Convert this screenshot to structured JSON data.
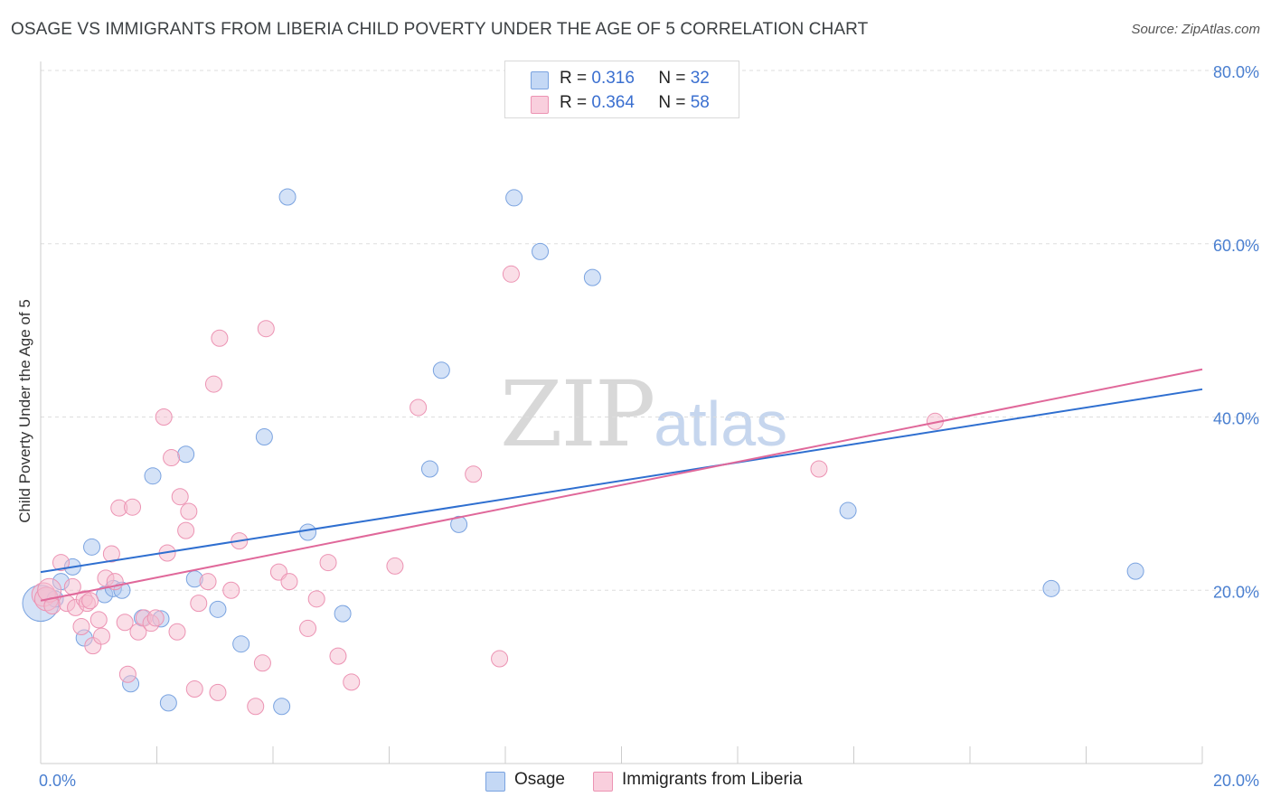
{
  "header": {
    "title": "OSAGE VS IMMIGRANTS FROM LIBERIA CHILD POVERTY UNDER THE AGE OF 5 CORRELATION CHART",
    "source": "Source: ZipAtlas.com"
  },
  "watermark": {
    "zip": "ZIP",
    "atlas": "atlas"
  },
  "legend": {
    "rows": [
      {
        "r_label": "R =",
        "r_value": "0.316",
        "n_label": "N =",
        "n_value": "32"
      },
      {
        "r_label": "R =",
        "r_value": "0.364",
        "n_label": "N =",
        "n_value": "58"
      }
    ]
  },
  "bottom_legend": {
    "series_a": "Osage",
    "series_b": "Immigrants from Liberia"
  },
  "colors": {
    "osage_fill": "#aac6f0",
    "osage_stroke": "#7aa3e0",
    "osage_line": "#2f6fd0",
    "liberia_fill": "#f6bdd0",
    "liberia_stroke": "#ec93b3",
    "liberia_line": "#e0689a",
    "tick_text": "#4a7fd0",
    "grid": "#dddddd"
  },
  "chart_data": {
    "type": "scatter",
    "title": "OSAGE VS IMMIGRANTS FROM LIBERIA CHILD POVERTY UNDER THE AGE OF 5 CORRELATION CHART",
    "xlabel": "",
    "ylabel": "Child Poverty Under the Age of 5",
    "xlim": [
      0,
      20
    ],
    "ylim": [
      0,
      80
    ],
    "x_tick_labels": [
      "0.0%",
      "20.0%"
    ],
    "y_ticks": [
      20,
      40,
      60,
      80
    ],
    "y_tick_labels": [
      "20.0%",
      "40.0%",
      "60.0%",
      "80.0%"
    ],
    "grid": true,
    "legend_position": "top-center",
    "series": [
      {
        "name": "Osage",
        "r": 0.316,
        "n": 32,
        "trend": {
          "x": [
            0,
            20
          ],
          "y": [
            22.1,
            43.2
          ]
        },
        "points": [
          {
            "x": 0.0,
            "y": 18.5
          },
          {
            "x": 0.25,
            "y": 19.0
          },
          {
            "x": 0.35,
            "y": 21.0
          },
          {
            "x": 0.55,
            "y": 22.7
          },
          {
            "x": 0.75,
            "y": 14.5
          },
          {
            "x": 0.88,
            "y": 25.0
          },
          {
            "x": 1.1,
            "y": 19.5
          },
          {
            "x": 1.25,
            "y": 20.2
          },
          {
            "x": 1.4,
            "y": 20.0
          },
          {
            "x": 1.55,
            "y": 9.2
          },
          {
            "x": 1.75,
            "y": 16.8
          },
          {
            "x": 1.93,
            "y": 33.2
          },
          {
            "x": 2.07,
            "y": 16.7
          },
          {
            "x": 2.2,
            "y": 7.0
          },
          {
            "x": 2.5,
            "y": 35.7
          },
          {
            "x": 2.65,
            "y": 21.3
          },
          {
            "x": 3.05,
            "y": 17.8
          },
          {
            "x": 3.45,
            "y": 13.8
          },
          {
            "x": 3.85,
            "y": 37.7
          },
          {
            "x": 4.15,
            "y": 6.6
          },
          {
            "x": 4.25,
            "y": 65.4
          },
          {
            "x": 4.6,
            "y": 26.7
          },
          {
            "x": 5.2,
            "y": 17.3
          },
          {
            "x": 6.7,
            "y": 34.0
          },
          {
            "x": 6.9,
            "y": 45.4
          },
          {
            "x": 7.2,
            "y": 27.6
          },
          {
            "x": 8.15,
            "y": 65.3
          },
          {
            "x": 8.6,
            "y": 59.1
          },
          {
            "x": 9.5,
            "y": 56.1
          },
          {
            "x": 13.9,
            "y": 29.2
          },
          {
            "x": 17.4,
            "y": 20.2
          },
          {
            "x": 18.85,
            "y": 22.2
          }
        ]
      },
      {
        "name": "Immigrants from Liberia",
        "r": 0.364,
        "n": 58,
        "trend": {
          "x": [
            0,
            20
          ],
          "y": [
            18.8,
            45.5
          ]
        },
        "points": [
          {
            "x": 0.05,
            "y": 19.5
          },
          {
            "x": 0.1,
            "y": 19.0
          },
          {
            "x": 0.15,
            "y": 20.0
          },
          {
            "x": 0.2,
            "y": 18.2
          },
          {
            "x": 0.35,
            "y": 23.2
          },
          {
            "x": 0.45,
            "y": 18.5
          },
          {
            "x": 0.55,
            "y": 20.4
          },
          {
            "x": 0.6,
            "y": 18.0
          },
          {
            "x": 0.7,
            "y": 15.8
          },
          {
            "x": 0.75,
            "y": 19.0
          },
          {
            "x": 0.8,
            "y": 18.5
          },
          {
            "x": 0.85,
            "y": 18.8
          },
          {
            "x": 0.9,
            "y": 13.6
          },
          {
            "x": 1.0,
            "y": 16.6
          },
          {
            "x": 1.05,
            "y": 14.7
          },
          {
            "x": 1.12,
            "y": 21.4
          },
          {
            "x": 1.22,
            "y": 24.2
          },
          {
            "x": 1.28,
            "y": 21.0
          },
          {
            "x": 1.35,
            "y": 29.5
          },
          {
            "x": 1.45,
            "y": 16.3
          },
          {
            "x": 1.5,
            "y": 10.3
          },
          {
            "x": 1.58,
            "y": 29.6
          },
          {
            "x": 1.68,
            "y": 15.2
          },
          {
            "x": 1.78,
            "y": 16.8
          },
          {
            "x": 1.9,
            "y": 16.2
          },
          {
            "x": 1.98,
            "y": 16.8
          },
          {
            "x": 2.12,
            "y": 40.0
          },
          {
            "x": 2.18,
            "y": 24.3
          },
          {
            "x": 2.25,
            "y": 35.3
          },
          {
            "x": 2.35,
            "y": 15.2
          },
          {
            "x": 2.4,
            "y": 30.8
          },
          {
            "x": 2.5,
            "y": 26.9
          },
          {
            "x": 2.55,
            "y": 29.1
          },
          {
            "x": 2.65,
            "y": 8.6
          },
          {
            "x": 2.72,
            "y": 18.5
          },
          {
            "x": 2.88,
            "y": 21.0
          },
          {
            "x": 2.98,
            "y": 43.8
          },
          {
            "x": 3.05,
            "y": 8.2
          },
          {
            "x": 3.08,
            "y": 49.1
          },
          {
            "x": 3.28,
            "y": 20.0
          },
          {
            "x": 3.42,
            "y": 25.7
          },
          {
            "x": 3.7,
            "y": 6.6
          },
          {
            "x": 3.82,
            "y": 11.6
          },
          {
            "x": 3.88,
            "y": 50.2
          },
          {
            "x": 4.1,
            "y": 22.1
          },
          {
            "x": 4.28,
            "y": 21.0
          },
          {
            "x": 4.6,
            "y": 15.6
          },
          {
            "x": 4.75,
            "y": 19.0
          },
          {
            "x": 4.95,
            "y": 23.2
          },
          {
            "x": 5.12,
            "y": 12.4
          },
          {
            "x": 5.35,
            "y": 9.4
          },
          {
            "x": 6.1,
            "y": 22.8
          },
          {
            "x": 6.5,
            "y": 41.1
          },
          {
            "x": 7.45,
            "y": 33.4
          },
          {
            "x": 7.9,
            "y": 12.1
          },
          {
            "x": 8.1,
            "y": 56.5
          },
          {
            "x": 13.4,
            "y": 34.0
          },
          {
            "x": 15.4,
            "y": 39.5
          }
        ]
      }
    ]
  }
}
